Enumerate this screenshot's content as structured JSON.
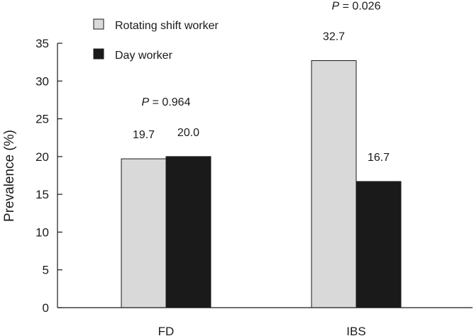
{
  "chart_data": {
    "type": "bar",
    "ylabel": "Prevalence (%)",
    "xlabel": "",
    "ylim": [
      0,
      35
    ],
    "yticks": [
      0,
      5,
      10,
      15,
      20,
      25,
      30,
      35
    ],
    "categories": [
      "FD",
      "IBS"
    ],
    "series": [
      {
        "name": "Rotating shift worker",
        "color": "#d9d9d9",
        "values": [
          19.7,
          32.7
        ],
        "labels": [
          "19.7",
          "32.7"
        ]
      },
      {
        "name": "Day worker",
        "color": "#1a1a1a",
        "values": [
          20.0,
          16.7
        ],
        "labels": [
          "20.0",
          "16.7"
        ]
      }
    ],
    "annotations": [
      {
        "category": "FD",
        "prefix": "P",
        "text": " = 0.964"
      },
      {
        "category": "IBS",
        "prefix": "P",
        "text": " = 0.026"
      }
    ],
    "legend_position": "top-left",
    "grid": false
  }
}
